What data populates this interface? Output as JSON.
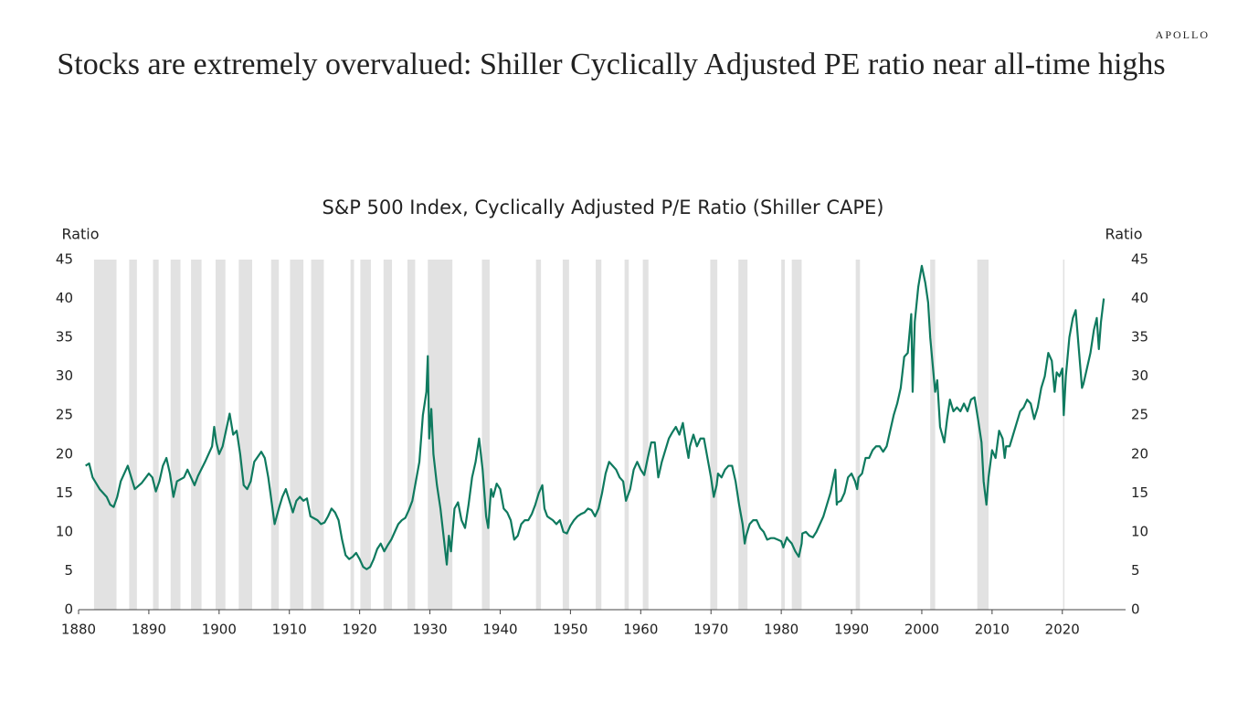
{
  "brand": "APOLLO",
  "headline": "Stocks are extremely overvalued: Shiller Cyclically Adjusted PE ratio near all-time highs",
  "chart_data": {
    "type": "line",
    "title": "S&P 500 Index, Cyclically Adjusted P/E Ratio (Shiller CAPE)",
    "y_label": "Ratio",
    "y2_label": "Ratio",
    "xlim": [
      1880,
      2029
    ],
    "xticks": [
      1880,
      1890,
      1900,
      1910,
      1920,
      1930,
      1940,
      1950,
      1960,
      1970,
      1980,
      1990,
      2000,
      2010,
      2020
    ],
    "ylim": [
      0,
      45
    ],
    "yticks": [
      0,
      5,
      10,
      15,
      20,
      25,
      30,
      35,
      40,
      45
    ],
    "y2lim": [
      0,
      45
    ],
    "y2ticks": [
      0,
      5,
      10,
      15,
      20,
      25,
      30,
      35,
      40,
      45
    ],
    "recession_color": "#e2e2e2",
    "recessions": [
      [
        1882.2,
        1885.4
      ],
      [
        1887.2,
        1888.3
      ],
      [
        1890.6,
        1891.4
      ],
      [
        1893.1,
        1894.5
      ],
      [
        1896.0,
        1897.5
      ],
      [
        1899.5,
        1900.9
      ],
      [
        1902.8,
        1904.7
      ],
      [
        1907.4,
        1908.5
      ],
      [
        1910.1,
        1912.0
      ],
      [
        1913.1,
        1914.9
      ],
      [
        1918.7,
        1919.2
      ],
      [
        1920.1,
        1921.6
      ],
      [
        1923.4,
        1924.6
      ],
      [
        1926.8,
        1927.9
      ],
      [
        1929.7,
        1933.2
      ],
      [
        1937.4,
        1938.5
      ],
      [
        1945.1,
        1945.8
      ],
      [
        1948.9,
        1949.8
      ],
      [
        1953.6,
        1954.4
      ],
      [
        1957.7,
        1958.3
      ],
      [
        1960.3,
        1961.1
      ],
      [
        1969.9,
        1970.9
      ],
      [
        1973.9,
        1975.2
      ],
      [
        1980.0,
        1980.5
      ],
      [
        1981.5,
        1982.9
      ],
      [
        1990.6,
        1991.2
      ],
      [
        2001.2,
        2001.9
      ],
      [
        2007.9,
        2009.5
      ],
      [
        2020.1,
        2020.3
      ]
    ],
    "x": [
      1881,
      1881.5,
      1882,
      1883,
      1884,
      1884.5,
      1885,
      1885.5,
      1886,
      1887,
      1887.5,
      1888,
      1889,
      1890,
      1890.5,
      1891,
      1891.5,
      1892,
      1892.5,
      1893,
      1893.5,
      1894,
      1895,
      1895.5,
      1896,
      1896.5,
      1897,
      1898,
      1899,
      1899.3,
      1899.6,
      1900,
      1900.5,
      1901.5,
      1902,
      1902.5,
      1903,
      1903.5,
      1904,
      1904.5,
      1905,
      1906,
      1906.5,
      1907,
      1907.6,
      1907.9,
      1908.5,
      1909,
      1909.5,
      1910,
      1910.5,
      1911,
      1911.5,
      1912,
      1912.5,
      1913,
      1914,
      1914.5,
      1915,
      1915.5,
      1916,
      1916.5,
      1917,
      1917.5,
      1918,
      1918.5,
      1919,
      1919.5,
      1920,
      1920.5,
      1921,
      1921.5,
      1922,
      1922.5,
      1923,
      1923.5,
      1924,
      1924.5,
      1925,
      1925.5,
      1926,
      1926.5,
      1927,
      1927.5,
      1928,
      1928.5,
      1929,
      1929.5,
      1929.7,
      1929.9,
      1930.2,
      1930.5,
      1931,
      1931.5,
      1932,
      1932.4,
      1932.7,
      1933,
      1933.5,
      1934,
      1934.5,
      1935,
      1935.5,
      1936,
      1936.5,
      1937,
      1937.5,
      1938,
      1938.3,
      1938.7,
      1939,
      1939.5,
      1940,
      1940.5,
      1941,
      1941.5,
      1942,
      1942.5,
      1943,
      1943.5,
      1944,
      1944.5,
      1945,
      1945.5,
      1946,
      1946.3,
      1946.7,
      1947,
      1947.5,
      1948,
      1948.5,
      1949,
      1949.5,
      1950,
      1950.5,
      1951,
      1951.5,
      1952,
      1952.5,
      1953,
      1953.5,
      1954,
      1954.5,
      1955,
      1955.5,
      1956,
      1956.5,
      1957,
      1957.5,
      1957.9,
      1958.5,
      1959,
      1959.5,
      1960,
      1960.5,
      1961,
      1961.5,
      1962,
      1962.5,
      1963,
      1963.5,
      1964,
      1964.5,
      1965,
      1965.5,
      1966,
      1966.5,
      1966.8,
      1967,
      1967.5,
      1968,
      1968.5,
      1969,
      1969.5,
      1970,
      1970.4,
      1970.8,
      1971,
      1971.5,
      1972,
      1972.5,
      1973,
      1973.5,
      1974,
      1974.5,
      1974.8,
      1975,
      1975.5,
      1976,
      1976.5,
      1977,
      1977.5,
      1978,
      1978.5,
      1979,
      1979.5,
      1980,
      1980.3,
      1980.8,
      1981,
      1981.5,
      1982,
      1982.5,
      1982.9,
      1983,
      1983.5,
      1984,
      1984.5,
      1985,
      1985.5,
      1986,
      1986.5,
      1987,
      1987.7,
      1987.9,
      1988,
      1988.5,
      1989,
      1989.5,
      1990,
      1990.5,
      1990.8,
      1991,
      1991.5,
      1992,
      1992.5,
      1993,
      1993.5,
      1994,
      1994.5,
      1995,
      1995.5,
      1996,
      1996.5,
      1997,
      1997.5,
      1998,
      1998.5,
      1998.7,
      1999,
      1999.5,
      2000,
      2000.5,
      2000.9,
      2001.2,
      2001.7,
      2001.9,
      2002.2,
      2002.6,
      2002.9,
      2003.2,
      2003.6,
      2004,
      2004.5,
      2005,
      2005.5,
      2006,
      2006.5,
      2007,
      2007.5,
      2008,
      2008.5,
      2008.8,
      2009.2,
      2009.5,
      2010,
      2010.5,
      2011,
      2011.5,
      2011.8,
      2012,
      2012.5,
      2013,
      2013.5,
      2014,
      2014.5,
      2015,
      2015.5,
      2016,
      2016.5,
      2017,
      2017.5,
      2018,
      2018.5,
      2018.9,
      2019.2,
      2019.6,
      2020,
      2020.2,
      2020.5,
      2021,
      2021.5,
      2021.9,
      2022.3,
      2022.8,
      2023,
      2023.5,
      2024,
      2024.5,
      2024.9,
      2025.2,
      2025.5,
      2025.9
    ],
    "series": [
      {
        "name": "Shiller CAPE",
        "color": "#0f7a5f",
        "values": [
          18.5,
          18.8,
          17,
          15.5,
          14.5,
          13.5,
          13.2,
          14.5,
          16.5,
          18.5,
          17,
          15.5,
          16.3,
          17.5,
          17,
          15.2,
          16.5,
          18.5,
          19.5,
          17.5,
          14.5,
          16.5,
          17,
          18,
          17,
          16,
          17.2,
          19,
          21,
          23.5,
          21.5,
          20,
          21,
          25.2,
          22.5,
          23,
          20,
          16,
          15.5,
          16.5,
          19,
          20.3,
          19.5,
          17,
          13,
          11,
          13,
          14.5,
          15.5,
          14,
          12.5,
          14,
          14.5,
          14,
          14.3,
          12,
          11.5,
          11,
          11.2,
          12,
          13,
          12.5,
          11.5,
          9,
          7,
          6.5,
          6.8,
          7.3,
          6.5,
          5.5,
          5.2,
          5.5,
          6.5,
          7.8,
          8.5,
          7.5,
          8.3,
          9,
          10,
          11,
          11.5,
          11.8,
          12.8,
          14,
          16.5,
          19,
          25,
          28,
          32.6,
          22,
          25.8,
          20,
          16,
          13,
          9,
          5.8,
          9.5,
          7.5,
          13,
          13.8,
          11.5,
          10.5,
          13.5,
          17,
          19,
          22,
          18,
          12,
          10.5,
          15.5,
          14.5,
          16.2,
          15.5,
          13,
          12.5,
          11.5,
          9,
          9.5,
          11,
          11.5,
          11.5,
          12.3,
          13.5,
          15,
          16,
          13,
          12,
          11.8,
          11.5,
          11,
          11.5,
          10,
          9.8,
          10.8,
          11.5,
          12,
          12.3,
          12.5,
          13,
          12.8,
          12,
          13,
          15,
          17.5,
          19,
          18.5,
          18,
          17,
          16.5,
          14,
          15.5,
          18,
          19,
          18,
          17.3,
          19.5,
          21.5,
          21.5,
          17,
          19,
          20.5,
          22,
          22.8,
          23.5,
          22.5,
          24,
          21,
          19.5,
          21,
          22.5,
          21,
          22,
          22,
          19.5,
          17,
          14.5,
          16,
          17.5,
          17,
          18,
          18.5,
          18.5,
          16.5,
          13.5,
          11,
          8.5,
          9.5,
          11,
          11.5,
          11.5,
          10.5,
          10,
          9,
          9.2,
          9.2,
          9,
          8.8,
          8,
          9.3,
          9,
          8.5,
          7.5,
          6.8,
          8.5,
          9.8,
          10,
          9.5,
          9.3,
          10,
          11,
          12,
          13.5,
          15,
          18,
          13.5,
          13.8,
          14,
          15,
          17,
          17.5,
          16.5,
          15.5,
          17,
          17.5,
          19.5,
          19.5,
          20.5,
          21,
          21,
          20.3,
          21,
          23,
          25,
          26.5,
          28.5,
          32.5,
          33,
          38,
          28,
          37,
          41.5,
          44.2,
          42,
          39.5,
          35,
          30,
          28,
          29.5,
          23.5,
          22.5,
          21.5,
          24.5,
          27,
          25.5,
          26,
          25.5,
          26.5,
          25.5,
          27,
          27.3,
          24.5,
          21.5,
          16.5,
          13.5,
          17,
          20.5,
          19.5,
          23,
          22,
          19.5,
          21,
          21,
          22.5,
          24,
          25.5,
          26,
          27,
          26.5,
          24.5,
          26,
          28.5,
          30,
          33,
          32,
          28,
          30.5,
          30,
          31,
          25,
          30,
          35,
          37.5,
          38.5,
          34,
          28.5,
          29,
          31,
          33,
          36,
          37.5,
          33.5,
          37,
          40
        ]
      }
    ]
  }
}
